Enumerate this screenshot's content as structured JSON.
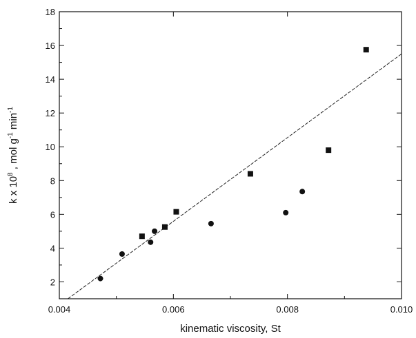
{
  "chart_data": {
    "type": "scatter",
    "title": "",
    "xlabel": "kinematic viscosity, St",
    "ylabel": {
      "base": "k x 10",
      "exp": "8",
      "mid": " , mol g",
      "exp2": "-1",
      "end": " min",
      "exp3": "-1"
    },
    "xlim": [
      0.004,
      0.01
    ],
    "ylim": [
      1,
      18
    ],
    "x_ticks": [
      0.004,
      0.006,
      0.008,
      0.01
    ],
    "x_tick_labels": [
      "0.004",
      "0.006",
      "0.008",
      "0.010"
    ],
    "y_ticks": [
      2,
      4,
      6,
      8,
      10,
      12,
      14,
      16,
      18
    ],
    "y_tick_labels": [
      "2",
      "4",
      "6",
      "8",
      "10",
      "12",
      "14",
      "16",
      "18"
    ],
    "grid": false,
    "series": [
      {
        "marker": "square",
        "points": [
          {
            "x": 0.00545,
            "y": 4.7
          },
          {
            "x": 0.00585,
            "y": 5.25
          },
          {
            "x": 0.00605,
            "y": 6.15
          },
          {
            "x": 0.00735,
            "y": 8.4
          },
          {
            "x": 0.00872,
            "y": 9.8
          },
          {
            "x": 0.00938,
            "y": 15.75
          }
        ]
      },
      {
        "marker": "circle",
        "points": [
          {
            "x": 0.00472,
            "y": 2.2
          },
          {
            "x": 0.0051,
            "y": 3.65
          },
          {
            "x": 0.0056,
            "y": 4.35
          },
          {
            "x": 0.00567,
            "y": 5.0
          },
          {
            "x": 0.00666,
            "y": 5.45
          },
          {
            "x": 0.00797,
            "y": 6.1
          },
          {
            "x": 0.00826,
            "y": 7.35
          }
        ]
      }
    ],
    "fit_line": {
      "style": "dashed",
      "points": [
        {
          "x": 0.00415,
          "y": 1.0
        },
        {
          "x": 0.01,
          "y": 15.5
        }
      ]
    },
    "colors": {
      "marker": "#111111",
      "axis": "#111111",
      "fit_line": "#222222"
    }
  }
}
